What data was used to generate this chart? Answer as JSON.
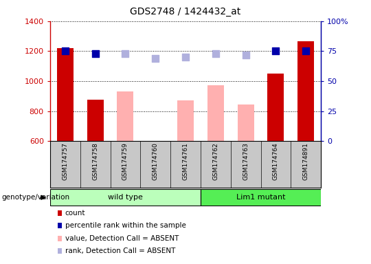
{
  "title": "GDS2748 / 1424432_at",
  "samples": [
    "GSM174757",
    "GSM174758",
    "GSM174759",
    "GSM174760",
    "GSM174761",
    "GSM174762",
    "GSM174763",
    "GSM174764",
    "GSM174891"
  ],
  "count_values": [
    1220,
    875,
    null,
    null,
    null,
    null,
    null,
    1050,
    1265
  ],
  "count_absent_values": [
    null,
    null,
    930,
    null,
    870,
    975,
    845,
    null,
    null
  ],
  "rank_values": [
    75,
    73,
    null,
    null,
    null,
    null,
    null,
    75,
    75
  ],
  "rank_absent_values": [
    null,
    null,
    73,
    69,
    70,
    73,
    72,
    null,
    null
  ],
  "ylim_left": [
    600,
    1400
  ],
  "ylim_right": [
    0,
    100
  ],
  "yticks_left": [
    600,
    800,
    1000,
    1200,
    1400
  ],
  "yticks_right": [
    0,
    25,
    50,
    75,
    100
  ],
  "ytick_labels_right": [
    "0",
    "25",
    "50",
    "75",
    "100%"
  ],
  "color_count": "#cc0000",
  "color_rank": "#0000aa",
  "color_absent_value": "#ffb0b0",
  "color_absent_rank": "#b0b0dd",
  "wild_type_indices": [
    0,
    1,
    2,
    3,
    4
  ],
  "lim1_mutant_indices": [
    5,
    6,
    7,
    8
  ],
  "group_label_wt": "wild type",
  "group_label_mut": "Lim1 mutant",
  "genotype_label": "genotype/variation",
  "legend_items": [
    {
      "label": "count",
      "color": "#cc0000"
    },
    {
      "label": "percentile rank within the sample",
      "color": "#0000aa"
    },
    {
      "label": "value, Detection Call = ABSENT",
      "color": "#ffb0b0"
    },
    {
      "label": "rank, Detection Call = ABSENT",
      "color": "#b0b0dd"
    }
  ],
  "bar_width": 0.55,
  "rank_marker_size": 55,
  "background_color": "#ffffff",
  "xtick_bg_color": "#c8c8c8",
  "group_box_color_wt": "#bbffbb",
  "group_box_color_mut": "#55ee55"
}
